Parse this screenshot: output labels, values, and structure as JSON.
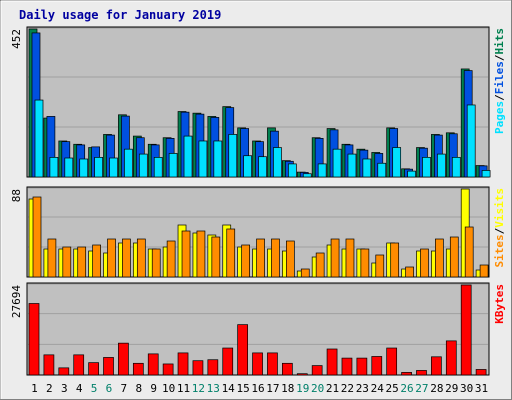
{
  "chart_data": {
    "type": "bar",
    "title": "Daily usage for January 2019",
    "categories": [
      "1",
      "2",
      "3",
      "4",
      "5",
      "6",
      "7",
      "8",
      "9",
      "10",
      "11",
      "12",
      "13",
      "14",
      "15",
      "16",
      "17",
      "18",
      "19",
      "20",
      "21",
      "22",
      "23",
      "24",
      "25",
      "26",
      "27",
      "28",
      "29",
      "30",
      "31"
    ],
    "weekend_days": [
      "5",
      "6",
      "12",
      "13",
      "19",
      "20",
      "26",
      "27"
    ],
    "colors": {
      "hits": "#00804f",
      "files": "#0050e0",
      "pages": "#00e0ff",
      "visits": "#ffff00",
      "sites": "#ff8c00",
      "kbytes": "#ff0000",
      "plot_bg": "#c0c0c0",
      "title": "#0000a0",
      "weekday_label": "#000000",
      "weekend_label": "#00806a"
    },
    "panels": [
      {
        "id": "hits-files-pages",
        "max_label": "452",
        "ymax": 452,
        "legend": [
          {
            "key": "pages",
            "text": "Pages"
          },
          {
            "key": "files",
            "text": "Files"
          },
          {
            "key": "hits",
            "text": "Hits"
          }
        ],
        "series": [
          {
            "key": "hits",
            "values": [
              452,
              180,
              110,
              100,
              90,
              130,
              190,
              125,
              100,
              120,
              200,
              195,
              185,
              215,
              150,
              110,
              150,
              50,
              15,
              120,
              148,
              100,
              85,
              75,
              150,
              25,
              90,
              130,
              135,
              330,
              35
            ]
          },
          {
            "key": "files",
            "values": [
              440,
              185,
              108,
              98,
              92,
              128,
              186,
              120,
              98,
              118,
              198,
              192,
              182,
              212,
              148,
              108,
              140,
              48,
              14,
              118,
              144,
              98,
              82,
              72,
              148,
              24,
              88,
              128,
              132,
              325,
              34
            ]
          },
          {
            "key": "pages",
            "values": [
              235,
              60,
              58,
              55,
              60,
              58,
              85,
              70,
              60,
              72,
              125,
              110,
              110,
              130,
              65,
              62,
              90,
              40,
              10,
              40,
              85,
              70,
              55,
              42,
              90,
              18,
              60,
              70,
              60,
              220,
              20
            ]
          }
        ]
      },
      {
        "id": "visits-sites",
        "max_label": "88",
        "ymax": 88,
        "legend": [
          {
            "key": "sites",
            "text": "Sites"
          },
          {
            "key": "visits",
            "text": "Visits"
          }
        ],
        "series": [
          {
            "key": "visits",
            "values": [
              78,
              28,
              28,
              28,
              26,
              24,
              34,
              34,
              28,
              30,
              52,
              44,
              42,
              52,
              30,
              28,
              28,
              26,
              6,
              20,
              32,
              28,
              28,
              14,
              34,
              8,
              26,
              26,
              28,
              88,
              7
            ]
          },
          {
            "key": "sites",
            "values": [
              80,
              38,
              30,
              30,
              32,
              38,
              38,
              38,
              28,
              36,
              46,
              46,
              40,
              48,
              32,
              38,
              38,
              36,
              8,
              24,
              38,
              38,
              28,
              22,
              34,
              10,
              28,
              38,
              40,
              50,
              12
            ]
          }
        ]
      },
      {
        "id": "kbytes",
        "max_label": "27694",
        "ymax": 27694,
        "legend": [
          {
            "key": "kbytes",
            "text": "KBytes"
          }
        ],
        "series": [
          {
            "key": "kbytes",
            "values": [
              22000,
              6200,
              2200,
              6200,
              3800,
              5400,
              9800,
              3600,
              6500,
              3400,
              6800,
              4400,
              4700,
              8300,
              15500,
              6800,
              6800,
              3600,
              400,
              2900,
              8000,
              5200,
              5200,
              5700,
              8300,
              800,
              1400,
              5600,
              10500,
              27694,
              1700
            ]
          }
        ]
      }
    ]
  }
}
